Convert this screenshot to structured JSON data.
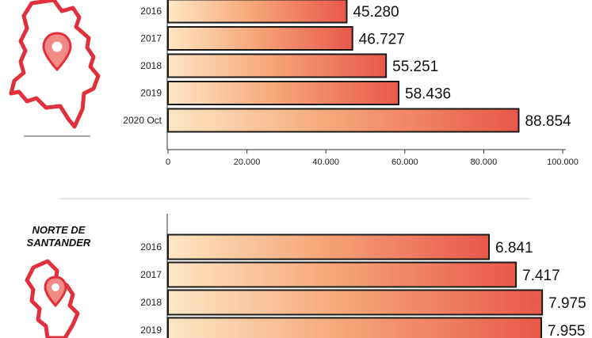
{
  "colors": {
    "bar_start": "#fde7c4",
    "bar_mid": "#f6a97c",
    "bar_end": "#e8584a",
    "map_outline": "#e0303b",
    "pin": "#ef8a84"
  },
  "icons": [
    "colombia-map-icon",
    "location-pin-icon",
    "norte-de-santander-map-icon"
  ],
  "chart_data": [
    {
      "type": "bar",
      "orientation": "horizontal",
      "title": "",
      "categories": [
        "2016",
        "2017",
        "2018",
        "2019",
        "2020 Oct"
      ],
      "values": [
        45280,
        46727,
        55251,
        58436,
        88854
      ],
      "value_labels": [
        "45.280",
        "46.727",
        "55.251",
        "58.436",
        "88.854"
      ],
      "xlim": [
        0,
        100000
      ],
      "xticks": [
        0,
        20000,
        40000,
        60000,
        80000,
        100000
      ],
      "xtick_labels": [
        "0",
        "20.000",
        "40.000",
        "60.000",
        "80.000",
        "100.000"
      ],
      "grid": false
    },
    {
      "type": "bar",
      "orientation": "horizontal",
      "title": "NORTE DE\nSANTANDER",
      "categories": [
        "2016",
        "2017",
        "2018",
        "2019"
      ],
      "values": [
        6841,
        7417,
        7975,
        7955
      ],
      "value_labels": [
        "6.841",
        "7.417",
        "7.975",
        "7.955"
      ],
      "grid": false
    }
  ]
}
